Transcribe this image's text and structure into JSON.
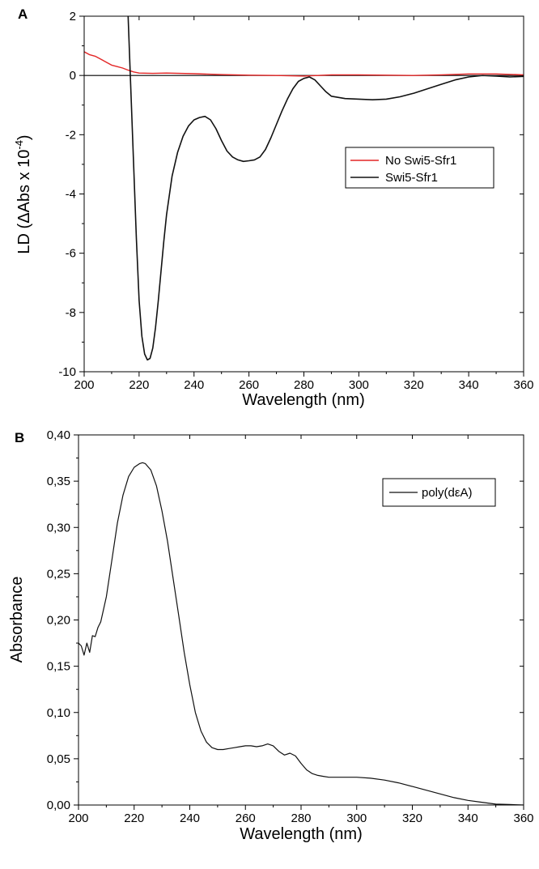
{
  "chart_data": [
    {
      "panel": "A",
      "type": "line",
      "xlabel": "Wavelength (nm)",
      "ylabel": "LD (ΔAbs x 10",
      "ylabel_exponent": "-4",
      "ylabel_close": ")",
      "xlim": [
        200,
        360
      ],
      "ylim": [
        -10,
        2
      ],
      "x_ticks": [
        200,
        220,
        240,
        260,
        280,
        300,
        320,
        340,
        360
      ],
      "y_ticks": [
        2,
        0,
        -2,
        -4,
        -6,
        -8,
        -10
      ],
      "x_tick_labels": [
        "200",
        "220",
        "240",
        "260",
        "280",
        "300",
        "320",
        "340",
        "360"
      ],
      "y_tick_labels": [
        "2",
        "0",
        "-2",
        "-4",
        "-6",
        "-8",
        "-10"
      ],
      "zero_line": true,
      "legend_position": "middle-right",
      "series": [
        {
          "name": "No Swi5-Sfr1",
          "color": "#e32626",
          "x": [
            200,
            202,
            204,
            206,
            208,
            210,
            212,
            214,
            216,
            218,
            220,
            225,
            230,
            240,
            250,
            260,
            270,
            280,
            290,
            300,
            310,
            320,
            330,
            340,
            350,
            360
          ],
          "y": [
            0.8,
            0.7,
            0.65,
            0.55,
            0.45,
            0.35,
            0.3,
            0.25,
            0.18,
            0.12,
            0.08,
            0.07,
            0.08,
            0.06,
            0.03,
            0.01,
            0.0,
            -0.02,
            0.02,
            0.02,
            0.01,
            0.0,
            0.02,
            0.05,
            0.05,
            0.02
          ]
        },
        {
          "name": "Swi5-Sfr1",
          "color": "#111111",
          "x": [
            216,
            217,
            218,
            219,
            220,
            221,
            222,
            223,
            224,
            225,
            226,
            227,
            228,
            229,
            230,
            232,
            234,
            236,
            238,
            240,
            242,
            244,
            246,
            248,
            250,
            252,
            254,
            256,
            258,
            260,
            262,
            264,
            266,
            268,
            270,
            272,
            274,
            276,
            278,
            280,
            282,
            284,
            286,
            288,
            290,
            295,
            300,
            305,
            310,
            315,
            320,
            325,
            330,
            335,
            340,
            345,
            350,
            355,
            360
          ],
          "y": [
            2.0,
            -0.5,
            -3.0,
            -5.5,
            -7.6,
            -8.8,
            -9.4,
            -9.6,
            -9.55,
            -9.2,
            -8.5,
            -7.6,
            -6.6,
            -5.6,
            -4.7,
            -3.4,
            -2.6,
            -2.05,
            -1.7,
            -1.5,
            -1.42,
            -1.38,
            -1.5,
            -1.8,
            -2.2,
            -2.55,
            -2.75,
            -2.85,
            -2.9,
            -2.88,
            -2.85,
            -2.75,
            -2.5,
            -2.1,
            -1.65,
            -1.2,
            -0.8,
            -0.45,
            -0.2,
            -0.1,
            -0.05,
            -0.15,
            -0.35,
            -0.55,
            -0.7,
            -0.78,
            -0.8,
            -0.82,
            -0.8,
            -0.72,
            -0.6,
            -0.45,
            -0.3,
            -0.15,
            -0.05,
            0.0,
            -0.02,
            -0.05,
            -0.03
          ]
        }
      ]
    },
    {
      "panel": "B",
      "type": "line",
      "xlabel": "Wavelength (nm)",
      "ylabel": "Absorbance",
      "xlim": [
        200,
        360
      ],
      "ylim": [
        0,
        0.4
      ],
      "x_ticks": [
        200,
        220,
        240,
        260,
        280,
        300,
        320,
        340,
        360
      ],
      "y_ticks": [
        0,
        0.05,
        0.1,
        0.15,
        0.2,
        0.25,
        0.3,
        0.35,
        0.4
      ],
      "x_tick_labels": [
        "200",
        "220",
        "240",
        "260",
        "280",
        "300",
        "320",
        "340",
        "360"
      ],
      "y_tick_labels": [
        "0,00",
        "0,05",
        "0,10",
        "0,15",
        "0,20",
        "0,25",
        "0,30",
        "0,35",
        "0,40"
      ],
      "legend_position": "top-right",
      "series": [
        {
          "name": "poly(dεA)",
          "color": "#111111",
          "x": [
            200,
            201,
            202,
            203,
            204,
            205,
            206,
            207,
            208,
            210,
            212,
            214,
            216,
            218,
            220,
            222,
            223,
            224,
            226,
            228,
            230,
            232,
            234,
            236,
            238,
            240,
            242,
            244,
            246,
            248,
            250,
            252,
            254,
            256,
            258,
            260,
            262,
            264,
            266,
            268,
            270,
            272,
            274,
            276,
            278,
            280,
            282,
            284,
            286,
            288,
            290,
            295,
            300,
            305,
            310,
            315,
            320,
            325,
            330,
            335,
            340,
            345,
            350,
            355,
            360
          ],
          "y": [
            0.175,
            0.172,
            0.162,
            0.175,
            0.165,
            0.183,
            0.182,
            0.192,
            0.198,
            0.225,
            0.265,
            0.305,
            0.335,
            0.355,
            0.365,
            0.369,
            0.37,
            0.369,
            0.362,
            0.345,
            0.318,
            0.285,
            0.245,
            0.205,
            0.165,
            0.13,
            0.1,
            0.08,
            0.068,
            0.062,
            0.06,
            0.06,
            0.061,
            0.062,
            0.063,
            0.064,
            0.064,
            0.063,
            0.064,
            0.066,
            0.064,
            0.058,
            0.054,
            0.056,
            0.053,
            0.045,
            0.038,
            0.034,
            0.032,
            0.031,
            0.03,
            0.03,
            0.03,
            0.029,
            0.027,
            0.024,
            0.02,
            0.016,
            0.012,
            0.008,
            0.005,
            0.003,
            0.001,
            0.0005,
            0.0
          ]
        }
      ]
    }
  ]
}
